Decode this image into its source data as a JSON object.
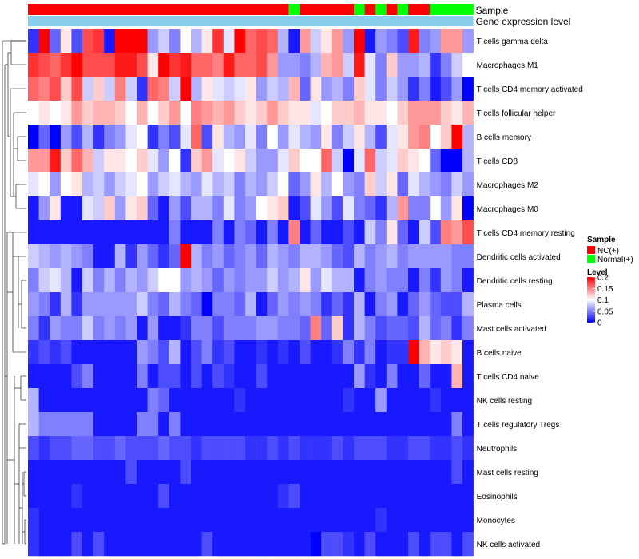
{
  "chart_data": {
    "type": "heatmap",
    "title": "",
    "annotations": [
      {
        "name": "Sample",
        "kind": "categorical"
      },
      {
        "name": "Gene expression level",
        "kind": "continuous"
      }
    ],
    "rows": [
      "T cells gamma delta",
      "Macrophages M1",
      "T cells CD4 memory activated",
      "T cells follicular helper",
      "B cells memory",
      "T cells CD8",
      "Macrophages M2",
      "Macrophages M0",
      "T cells CD4 memory resting",
      "Dendritic cells activated",
      "Dendritic cells resting",
      "Plasma cells",
      "Mast cells activated",
      "B cells naive",
      "T cells CD4 naive",
      "NK cells resting",
      "T cells regulatory  Tregs",
      "Neutrophils",
      "Mast cells resting",
      "Eosinophils",
      "Monocytes",
      "NK cells activated"
    ],
    "n_samples": 41,
    "sample_groups": [
      "NC",
      "NC",
      "NC",
      "NC",
      "NC",
      "NC",
      "NC",
      "NC",
      "NC",
      "NC",
      "NC",
      "NC",
      "NC",
      "NC",
      "NC",
      "NC",
      "NC",
      "NC",
      "NC",
      "NC",
      "NC",
      "NC",
      "NC",
      "NC",
      "Normal",
      "NC",
      "NC",
      "NC",
      "NC",
      "NC",
      "Normal",
      "NC",
      "Normal",
      "NC",
      "Normal",
      "NC",
      "NC",
      "Normal",
      "Normal",
      "Normal",
      "Normal"
    ],
    "values": [
      [
        0.02,
        0.2,
        0.04,
        0.11,
        0.03,
        0.17,
        0.18,
        0.01,
        0.2,
        0.2,
        0.2,
        0.06,
        0.08,
        0.05,
        0.1,
        0.07,
        0.11,
        0.18,
        0.09,
        0.2,
        0.16,
        0.17,
        0.16,
        0.07,
        0.01,
        0.14,
        0.08,
        0.11,
        0.14,
        0.06,
        0.2,
        0.01,
        0.06,
        0.05,
        0.03,
        0.19,
        0.05,
        0.06,
        0.14,
        0.14,
        0.06
      ],
      [
        0.18,
        0.17,
        0.16,
        0.18,
        0.2,
        0.17,
        0.17,
        0.17,
        0.19,
        0.19,
        0.17,
        0.11,
        0.2,
        0.18,
        0.19,
        0.16,
        0.16,
        0.15,
        0.19,
        0.16,
        0.16,
        0.17,
        0.14,
        0.06,
        0.06,
        0.05,
        0.07,
        0.13,
        0.14,
        0.08,
        0.19,
        0.09,
        0.05,
        0.12,
        0.06,
        0.06,
        0.07,
        0.02,
        0.05,
        0.08,
        0.1
      ],
      [
        0.16,
        0.15,
        0.17,
        0.12,
        0.17,
        0.08,
        0.12,
        0.08,
        0.15,
        0.08,
        0.02,
        0.16,
        0.15,
        0.08,
        0.2,
        0.07,
        0.11,
        0.09,
        0.08,
        0.09,
        0.11,
        0.06,
        0.08,
        0.07,
        0.13,
        0.04,
        0.11,
        0.06,
        0.07,
        0.05,
        0.12,
        0.09,
        0.05,
        0.08,
        0.06,
        0.02,
        0.05,
        0.01,
        0.03,
        0.06,
        0.0
      ],
      [
        0.1,
        0.11,
        0.1,
        0.11,
        0.14,
        0.12,
        0.13,
        0.13,
        0.12,
        0.1,
        0.13,
        0.1,
        0.12,
        0.14,
        0.1,
        0.15,
        0.14,
        0.13,
        0.14,
        0.12,
        0.11,
        0.12,
        0.14,
        0.12,
        0.11,
        0.11,
        0.09,
        0.1,
        0.12,
        0.12,
        0.13,
        0.11,
        0.11,
        0.1,
        0.12,
        0.14,
        0.14,
        0.14,
        0.12,
        0.11,
        0.13
      ],
      [
        0.0,
        0.04,
        0.0,
        0.06,
        0.03,
        0.07,
        0.02,
        0.05,
        0.06,
        0.09,
        0.1,
        0.02,
        0.05,
        0.03,
        0.09,
        0.16,
        0.03,
        0.11,
        0.07,
        0.06,
        0.09,
        0.05,
        0.1,
        0.06,
        0.09,
        0.07,
        0.06,
        0.11,
        0.05,
        0.08,
        0.11,
        0.07,
        0.03,
        0.09,
        0.11,
        0.14,
        0.15,
        0.1,
        0.12,
        0.2,
        0.07
      ],
      [
        0.14,
        0.14,
        0.19,
        0.12,
        0.16,
        0.13,
        0.08,
        0.11,
        0.11,
        0.1,
        0.12,
        0.09,
        0.06,
        0.1,
        0.02,
        0.12,
        0.14,
        0.09,
        0.1,
        0.11,
        0.08,
        0.06,
        0.06,
        0.09,
        0.12,
        0.1,
        0.1,
        0.16,
        0.08,
        0.0,
        0.09,
        0.16,
        0.08,
        0.09,
        0.12,
        0.11,
        0.1,
        0.04,
        0.0,
        0.0,
        0.07
      ],
      [
        0.09,
        0.1,
        0.06,
        0.1,
        0.11,
        0.07,
        0.08,
        0.06,
        0.08,
        0.09,
        0.1,
        0.06,
        0.08,
        0.09,
        0.07,
        0.06,
        0.09,
        0.07,
        0.08,
        0.05,
        0.07,
        0.06,
        0.08,
        0.1,
        0.04,
        0.06,
        0.11,
        0.07,
        0.1,
        0.06,
        0.05,
        0.12,
        0.08,
        0.11,
        0.04,
        0.09,
        0.07,
        0.06,
        0.05,
        0.08,
        0.06
      ],
      [
        0.01,
        0.06,
        0.11,
        0.01,
        0.01,
        0.09,
        0.08,
        0.12,
        0.06,
        0.11,
        0.12,
        0.04,
        0.01,
        0.06,
        0.03,
        0.07,
        0.07,
        0.05,
        0.09,
        0.05,
        0.06,
        0.1,
        0.11,
        0.12,
        0.01,
        0.03,
        0.09,
        0.06,
        0.03,
        0.09,
        0.05,
        0.04,
        0.02,
        0.07,
        0.14,
        0.05,
        0.05,
        0.1,
        0.06,
        0.11,
        0.0
      ],
      [
        0.01,
        0.01,
        0.01,
        0.01,
        0.01,
        0.01,
        0.01,
        0.01,
        0.01,
        0.01,
        0.01,
        0.01,
        0.01,
        0.05,
        0.01,
        0.01,
        0.01,
        0.05,
        0.01,
        0.05,
        0.04,
        0.01,
        0.05,
        0.01,
        0.15,
        0.01,
        0.04,
        0.01,
        0.01,
        0.03,
        0.01,
        0.08,
        0.05,
        0.11,
        0.04,
        0.01,
        0.08,
        0.03,
        0.15,
        0.14,
        0.17
      ],
      [
        0.08,
        0.07,
        0.06,
        0.07,
        0.06,
        0.05,
        0.01,
        0.01,
        0.07,
        0.02,
        0.06,
        0.04,
        0.02,
        0.04,
        0.2,
        0.07,
        0.05,
        0.06,
        0.04,
        0.05,
        0.06,
        0.04,
        0.07,
        0.06,
        0.05,
        0.07,
        0.07,
        0.06,
        0.04,
        0.03,
        0.07,
        0.05,
        0.06,
        0.07,
        0.05,
        0.06,
        0.06,
        0.06,
        0.06,
        0.05,
        0.05
      ],
      [
        0.05,
        0.08,
        0.09,
        0.07,
        0.01,
        0.08,
        0.05,
        0.07,
        0.05,
        0.07,
        0.06,
        0.08,
        0.1,
        0.1,
        0.06,
        0.07,
        0.06,
        0.04,
        0.06,
        0.05,
        0.06,
        0.06,
        0.08,
        0.06,
        0.07,
        0.11,
        0.06,
        0.09,
        0.07,
        0.07,
        0.01,
        0.05,
        0.06,
        0.05,
        0.05,
        0.01,
        0.05,
        0.02,
        0.06,
        0.05,
        0.01
      ],
      [
        0.06,
        0.05,
        0.02,
        0.07,
        0.02,
        0.06,
        0.06,
        0.06,
        0.06,
        0.06,
        0.08,
        0.05,
        0.04,
        0.07,
        0.05,
        0.04,
        0.0,
        0.05,
        0.05,
        0.04,
        0.07,
        0.01,
        0.04,
        0.06,
        0.05,
        0.06,
        0.05,
        0.02,
        0.04,
        0.02,
        0.07,
        0.01,
        0.05,
        0.06,
        0.01,
        0.04,
        0.06,
        0.04,
        0.03,
        0.03,
        0.07
      ],
      [
        0.05,
        0.02,
        0.06,
        0.05,
        0.05,
        0.08,
        0.05,
        0.06,
        0.05,
        0.06,
        0.01,
        0.06,
        0.01,
        0.01,
        0.02,
        0.05,
        0.05,
        0.03,
        0.05,
        0.05,
        0.05,
        0.06,
        0.06,
        0.05,
        0.05,
        0.04,
        0.15,
        0.04,
        0.12,
        0.02,
        0.07,
        0.05,
        0.03,
        0.04,
        0.04,
        0.03,
        0.07,
        0.04,
        0.05,
        0.02,
        0.05
      ],
      [
        0.02,
        0.03,
        0.02,
        0.03,
        0.01,
        0.01,
        0.01,
        0.01,
        0.01,
        0.01,
        0.06,
        0.05,
        0.03,
        0.07,
        0.01,
        0.03,
        0.05,
        0.02,
        0.03,
        0.01,
        0.01,
        0.02,
        0.01,
        0.02,
        0.01,
        0.03,
        0.01,
        0.01,
        0.02,
        0.05,
        0.02,
        0.05,
        0.01,
        0.02,
        0.02,
        0.2,
        0.13,
        0.11,
        0.12,
        0.11,
        0.01
      ],
      [
        0.01,
        0.01,
        0.01,
        0.01,
        0.03,
        0.05,
        0.01,
        0.01,
        0.01,
        0.01,
        0.05,
        0.01,
        0.03,
        0.03,
        0.01,
        0.03,
        0.01,
        0.03,
        0.02,
        0.01,
        0.01,
        0.03,
        0.01,
        0.01,
        0.01,
        0.01,
        0.01,
        0.01,
        0.01,
        0.01,
        0.06,
        0.02,
        0.01,
        0.05,
        0.01,
        0.01,
        0.04,
        0.01,
        0.01,
        0.13,
        0.01
      ],
      [
        0.07,
        0.01,
        0.01,
        0.01,
        0.01,
        0.01,
        0.01,
        0.01,
        0.01,
        0.01,
        0.01,
        0.05,
        0.04,
        0.01,
        0.01,
        0.01,
        0.01,
        0.01,
        0.01,
        0.02,
        0.01,
        0.01,
        0.01,
        0.01,
        0.01,
        0.01,
        0.01,
        0.01,
        0.01,
        0.02,
        0.01,
        0.01,
        0.06,
        0.01,
        0.01,
        0.01,
        0.01,
        0.02,
        0.01,
        0.01,
        0.01
      ],
      [
        0.07,
        0.05,
        0.05,
        0.05,
        0.05,
        0.05,
        0.01,
        0.01,
        0.01,
        0.01,
        0.05,
        0.05,
        0.01,
        0.05,
        0.01,
        0.01,
        0.01,
        0.01,
        0.01,
        0.01,
        0.01,
        0.01,
        0.01,
        0.01,
        0.01,
        0.01,
        0.01,
        0.01,
        0.01,
        0.01,
        0.01,
        0.01,
        0.01,
        0.01,
        0.01,
        0.01,
        0.01,
        0.01,
        0.01,
        0.05,
        0.01
      ],
      [
        0.03,
        0.02,
        0.03,
        0.03,
        0.04,
        0.04,
        0.03,
        0.03,
        0.04,
        0.03,
        0.03,
        0.03,
        0.04,
        0.03,
        0.03,
        0.02,
        0.03,
        0.03,
        0.03,
        0.03,
        0.02,
        0.02,
        0.03,
        0.02,
        0.03,
        0.02,
        0.02,
        0.02,
        0.03,
        0.02,
        0.03,
        0.03,
        0.03,
        0.02,
        0.02,
        0.03,
        0.03,
        0.02,
        0.02,
        0.03,
        0.02
      ],
      [
        0.01,
        0.01,
        0.01,
        0.01,
        0.01,
        0.01,
        0.01,
        0.01,
        0.01,
        0.03,
        0.01,
        0.01,
        0.01,
        0.01,
        0.03,
        0.01,
        0.01,
        0.01,
        0.01,
        0.01,
        0.01,
        0.01,
        0.01,
        0.01,
        0.01,
        0.01,
        0.01,
        0.01,
        0.01,
        0.01,
        0.01,
        0.01,
        0.01,
        0.01,
        0.01,
        0.01,
        0.01,
        0.01,
        0.01,
        0.03,
        0.01
      ],
      [
        0.01,
        0.01,
        0.01,
        0.01,
        0.02,
        0.01,
        0.01,
        0.01,
        0.01,
        0.01,
        0.01,
        0.01,
        0.03,
        0.01,
        0.01,
        0.01,
        0.01,
        0.01,
        0.01,
        0.01,
        0.01,
        0.01,
        0.01,
        0.02,
        0.03,
        0.01,
        0.01,
        0.01,
        0.01,
        0.01,
        0.01,
        0.01,
        0.01,
        0.01,
        0.01,
        0.01,
        0.01,
        0.01,
        0.01,
        0.01,
        0.01
      ],
      [
        0.02,
        0.01,
        0.01,
        0.01,
        0.01,
        0.01,
        0.01,
        0.01,
        0.01,
        0.01,
        0.01,
        0.01,
        0.01,
        0.01,
        0.01,
        0.01,
        0.01,
        0.01,
        0.01,
        0.01,
        0.01,
        0.01,
        0.01,
        0.01,
        0.01,
        0.01,
        0.01,
        0.01,
        0.01,
        0.01,
        0.01,
        0.01,
        0.02,
        0.01,
        0.01,
        0.01,
        0.01,
        0.01,
        0.01,
        0.01,
        0.01
      ],
      [
        0.02,
        0.01,
        0.01,
        0.01,
        0.03,
        0.01,
        0.03,
        0.01,
        0.01,
        0.01,
        0.01,
        0.01,
        0.01,
        0.01,
        0.01,
        0.01,
        0.03,
        0.01,
        0.01,
        0.01,
        0.01,
        0.01,
        0.01,
        0.01,
        0.01,
        0.01,
        0.0,
        0.03,
        0.03,
        0.02,
        0.01,
        0.03,
        0.01,
        0.01,
        0.01,
        0.03,
        0.01,
        0.03,
        0.03,
        0.01,
        0.03
      ]
    ],
    "legend": {
      "sample_title": "Sample",
      "sample_items": [
        {
          "label": "NC(+)",
          "color": "#ff0000"
        },
        {
          "label": "Normal(+)",
          "color": "#00ff00"
        }
      ],
      "level_title": "Level",
      "level_ticks": [
        0.2,
        0.15,
        0.1,
        0.05,
        0
      ],
      "range": [
        0,
        0.2
      ],
      "placement": "right"
    },
    "colors": {
      "low": "#0000ff",
      "mid": "#ffffff",
      "high": "#ff0000",
      "expr_bar": "#87ceeb"
    }
  }
}
